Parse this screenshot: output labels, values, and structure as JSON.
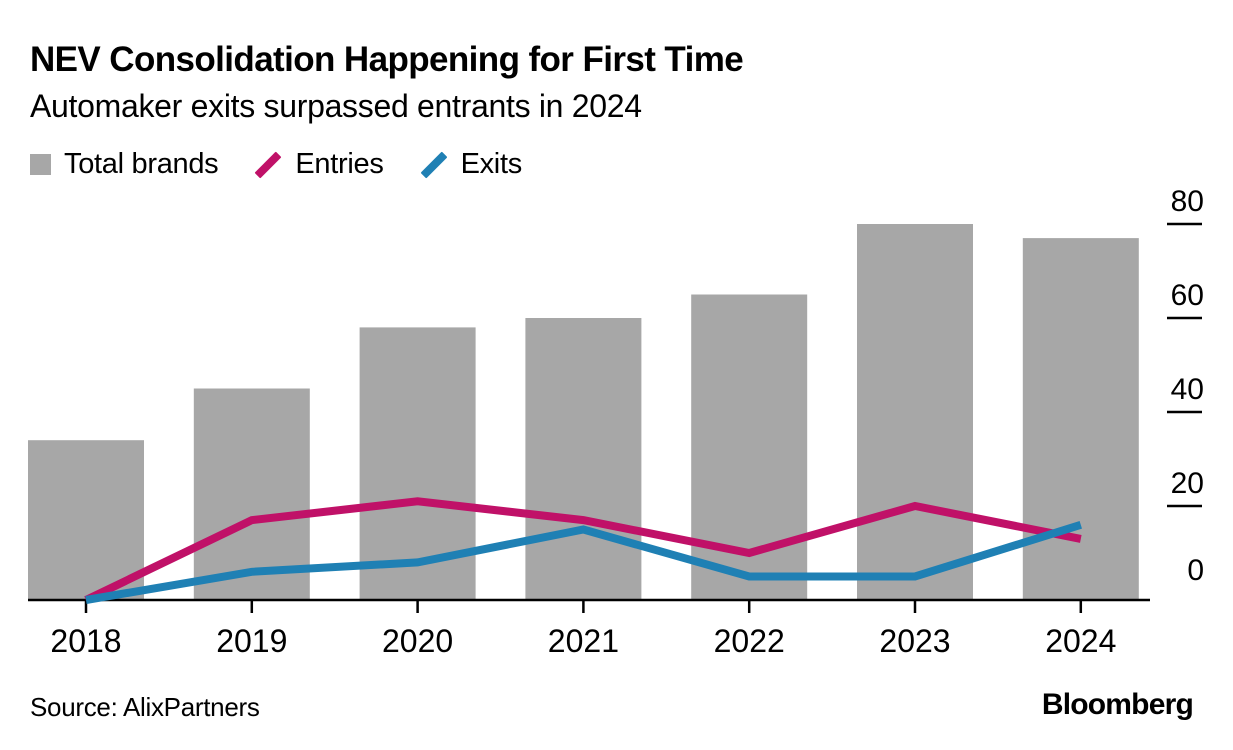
{
  "header": {
    "title": "NEV Consolidation Happening for First Time",
    "subtitle": "Automaker exits surpassed entrants in 2024"
  },
  "legend": [
    {
      "label": "Total brands",
      "swatch": "square",
      "color": "#a7a7a7"
    },
    {
      "label": "Entries",
      "swatch": "slash",
      "color": "#c01168"
    },
    {
      "label": "Exits",
      "swatch": "slash",
      "color": "#1f80b4"
    }
  ],
  "footer": {
    "source": "Source: AlixPartners",
    "brand": "Bloomberg"
  },
  "colors": {
    "bar_gray": "#a7a7a7",
    "entries_magenta": "#c01168",
    "exits_blue": "#1f80b4",
    "axis_black": "#000000"
  },
  "chart_data": {
    "type": "combo",
    "title": "NEV Consolidation Happening for First Time",
    "subtitle": "Automaker exits surpassed entrants in 2024",
    "categories": [
      "2018",
      "2019",
      "2020",
      "2021",
      "2022",
      "2023",
      "2024"
    ],
    "series": [
      {
        "name": "Total brands",
        "type": "bar",
        "color": "#a7a7a7",
        "values": [
          34,
          45,
          58,
          60,
          65,
          80,
          77
        ]
      },
      {
        "name": "Entries",
        "type": "line",
        "color": "#c01168",
        "values": [
          0,
          17,
          21,
          17,
          10,
          20,
          13
        ]
      },
      {
        "name": "Exits",
        "type": "line",
        "color": "#1f80b4",
        "values": [
          0,
          6,
          8,
          15,
          5,
          5,
          16
        ]
      }
    ],
    "ylim": [
      0,
      80
    ],
    "yticks": [
      0,
      20,
      40,
      60,
      80
    ],
    "yaxis_side": "right",
    "grid": false,
    "legend_position": "top-left",
    "source": "AlixPartners"
  }
}
